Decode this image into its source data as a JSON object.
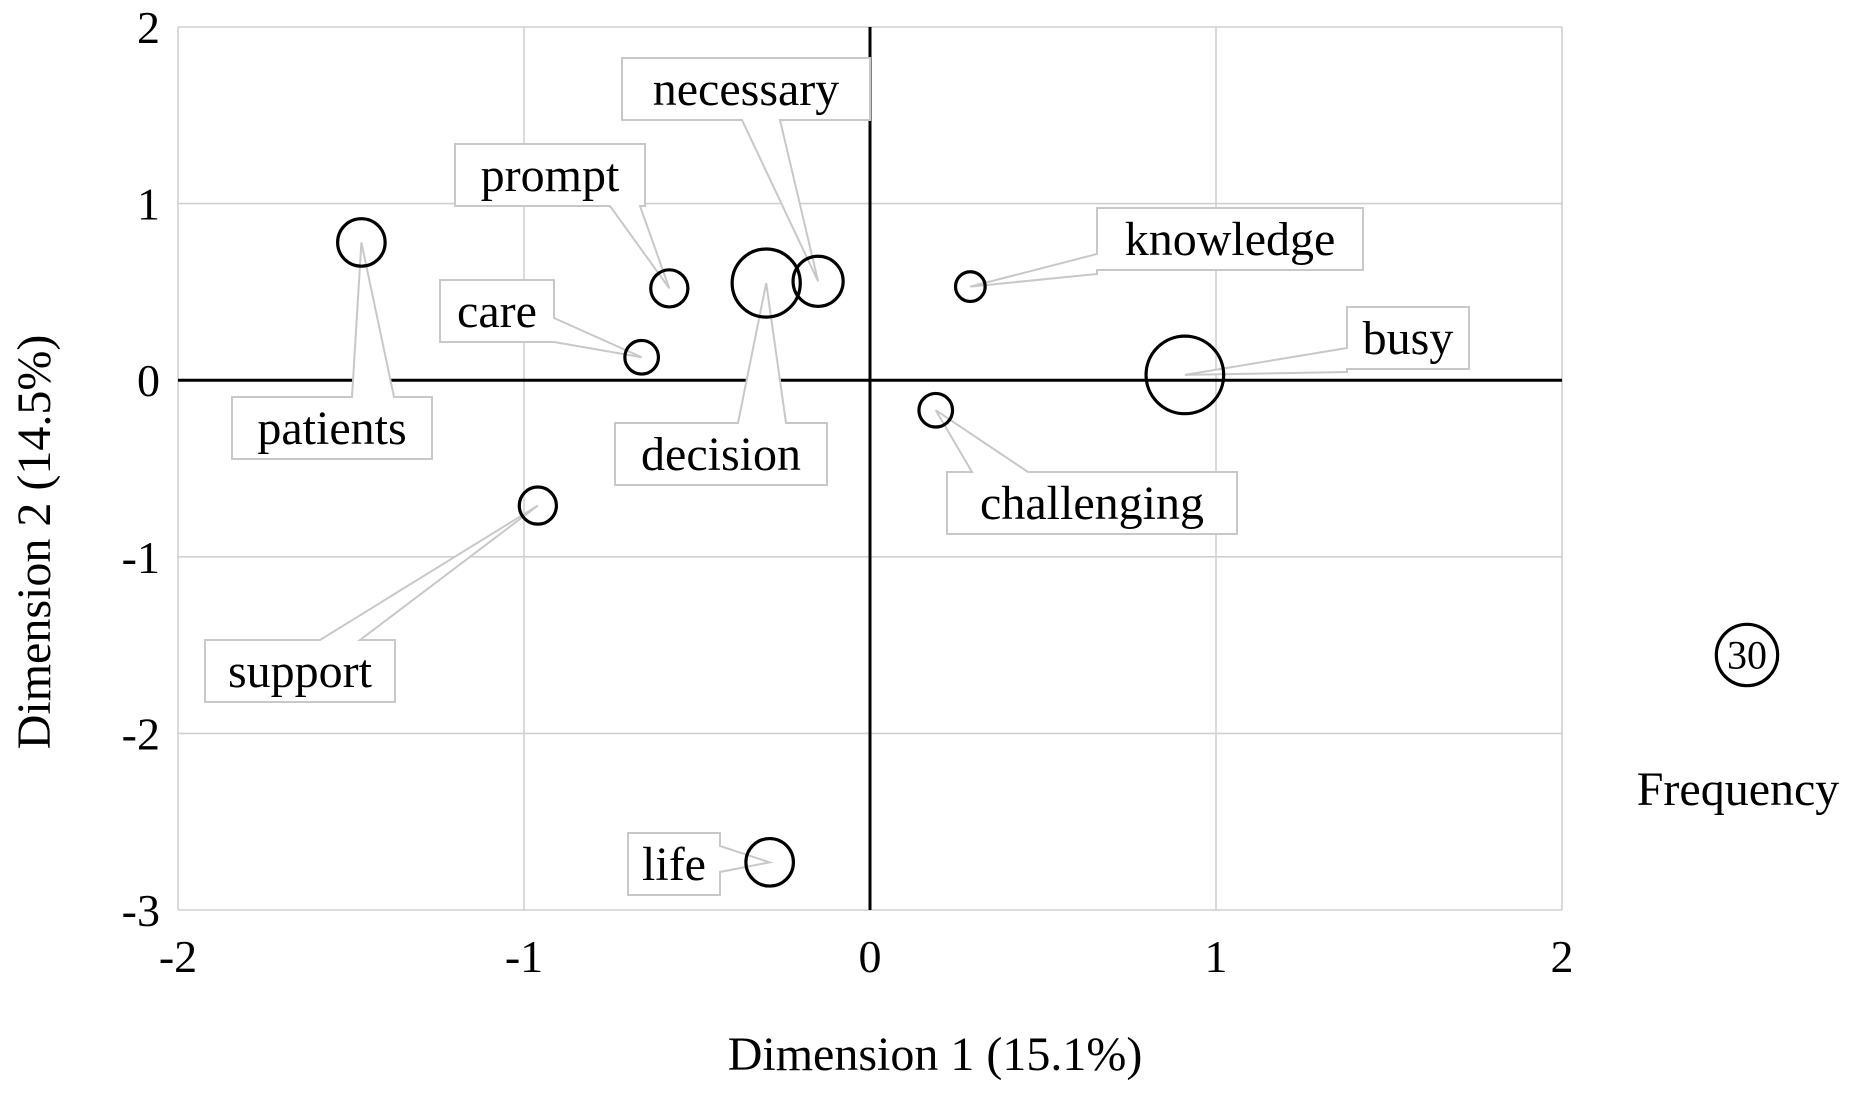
{
  "chart_data": {
    "type": "scatter",
    "xlabel": "Dimension 1 (15.1%)",
    "ylabel": "Dimension 2 (14.5%)",
    "xlim": [
      -2,
      2
    ],
    "ylim": [
      -3,
      2
    ],
    "xticks": [
      -2,
      -1,
      0,
      1,
      2
    ],
    "yticks": [
      2,
      1,
      0,
      -1,
      -2,
      -3
    ],
    "xtick_labels": [
      "-2",
      "-1",
      "0",
      "1",
      "2"
    ],
    "ytick_labels": [
      "2",
      "1",
      "0",
      "-1",
      "-2",
      "-3"
    ],
    "grid": true,
    "points": [
      {
        "label": "patients",
        "x": -1.47,
        "y": 0.78,
        "frequency": 18
      },
      {
        "label": "prompt",
        "x": -0.58,
        "y": 0.52,
        "frequency": 11
      },
      {
        "label": "decision",
        "x": -0.3,
        "y": 0.55,
        "frequency": 37
      },
      {
        "label": "necessary",
        "x": -0.15,
        "y": 0.56,
        "frequency": 20
      },
      {
        "label": "care",
        "x": -0.66,
        "y": 0.13,
        "frequency": 9
      },
      {
        "label": "knowledge",
        "x": 0.29,
        "y": 0.53,
        "frequency": 7
      },
      {
        "label": "busy",
        "x": 0.91,
        "y": 0.03,
        "frequency": 48
      },
      {
        "label": "challenging",
        "x": 0.19,
        "y": -0.17,
        "frequency": 9
      },
      {
        "label": "support",
        "x": -0.96,
        "y": -0.71,
        "frequency": 11
      },
      {
        "label": "life",
        "x": -0.29,
        "y": -2.73,
        "frequency": 18
      }
    ],
    "size_legend": {
      "title": "Frequency",
      "value": 30,
      "value_label": "30"
    }
  }
}
